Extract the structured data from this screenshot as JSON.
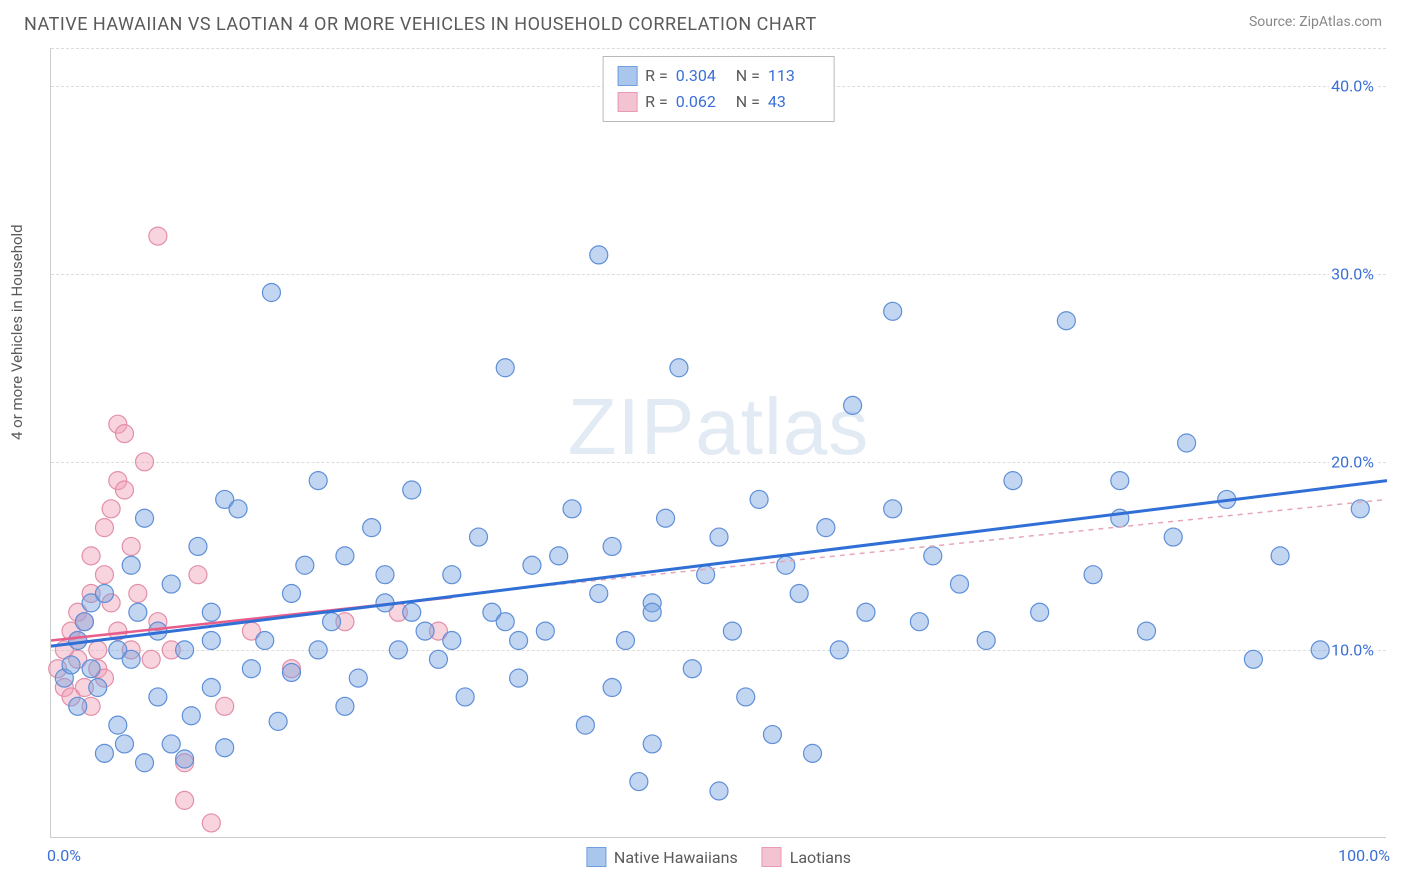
{
  "title": "NATIVE HAWAIIAN VS LAOTIAN 4 OR MORE VEHICLES IN HOUSEHOLD CORRELATION CHART",
  "source": "Source: ZipAtlas.com",
  "ylabel": "4 or more Vehicles in Household",
  "watermark": "ZIPatlas",
  "chart": {
    "type": "scatter",
    "xlim": [
      0,
      100
    ],
    "ylim": [
      0,
      42
    ],
    "yticks": [
      10,
      20,
      30,
      40
    ],
    "ytick_labels": [
      "10.0%",
      "20.0%",
      "30.0%",
      "40.0%"
    ],
    "xtick_low": "0.0%",
    "xtick_high": "100.0%",
    "grid_color": "#dcdcdc",
    "background": "#ffffff",
    "marker_radius": 9,
    "marker_stroke_width": 1.2,
    "series": [
      {
        "name": "Native Hawaiians",
        "fill": "rgba(120,165,225,0.45)",
        "stroke": "#5f8fd8",
        "swatch_fill": "#a9c6ed",
        "swatch_stroke": "#6f9fe0",
        "R": "0.304",
        "N": "113",
        "regression": {
          "x1": 0,
          "y1": 10.2,
          "x2": 100,
          "y2": 19.0,
          "color": "#2f6fd6",
          "width": 3,
          "dash": ""
        },
        "regression_ext": {
          "x1": 30,
          "y1": 12.9,
          "x2": 100,
          "y2": 18.0,
          "color": "#e7a6b6",
          "width": 1.5,
          "dash": "5,5"
        },
        "points": [
          [
            1,
            8.5
          ],
          [
            1.5,
            9.2
          ],
          [
            2,
            10.5
          ],
          [
            2,
            7
          ],
          [
            2.5,
            11.5
          ],
          [
            3,
            9
          ],
          [
            3,
            12.5
          ],
          [
            3.5,
            8
          ],
          [
            4,
            4.5
          ],
          [
            4,
            13
          ],
          [
            5,
            6
          ],
          [
            5,
            10
          ],
          [
            5.5,
            5
          ],
          [
            6,
            14.5
          ],
          [
            6,
            9.5
          ],
          [
            6.5,
            12
          ],
          [
            7,
            4
          ],
          [
            7,
            17
          ],
          [
            8,
            7.5
          ],
          [
            8,
            11
          ],
          [
            9,
            5
          ],
          [
            9,
            13.5
          ],
          [
            10,
            4.2
          ],
          [
            10,
            10
          ],
          [
            10.5,
            6.5
          ],
          [
            11,
            15.5
          ],
          [
            12,
            8
          ],
          [
            12,
            12
          ],
          [
            13,
            4.8
          ],
          [
            13,
            18
          ],
          [
            14,
            17.5
          ],
          [
            15,
            9
          ],
          [
            16,
            10.5
          ],
          [
            16.5,
            29
          ],
          [
            17,
            6.2
          ],
          [
            18,
            8.8
          ],
          [
            18,
            13
          ],
          [
            19,
            14.5
          ],
          [
            20,
            10
          ],
          [
            20,
            19
          ],
          [
            21,
            11.5
          ],
          [
            22,
            7
          ],
          [
            23,
            8.5
          ],
          [
            24,
            16.5
          ],
          [
            25,
            12.5
          ],
          [
            25,
            14
          ],
          [
            26,
            10
          ],
          [
            27,
            12
          ],
          [
            27,
            18.5
          ],
          [
            28,
            11
          ],
          [
            29,
            9.5
          ],
          [
            30,
            14
          ],
          [
            30,
            10.5
          ],
          [
            31,
            7.5
          ],
          [
            32,
            16
          ],
          [
            33,
            12
          ],
          [
            34,
            25
          ],
          [
            35,
            8.5
          ],
          [
            35,
            10.5
          ],
          [
            36,
            14.5
          ],
          [
            37,
            11
          ],
          [
            38,
            15
          ],
          [
            39,
            17.5
          ],
          [
            40,
            6
          ],
          [
            41,
            31
          ],
          [
            41,
            13
          ],
          [
            42,
            8
          ],
          [
            42,
            15.5
          ],
          [
            43,
            10.5
          ],
          [
            44,
            3
          ],
          [
            45,
            5
          ],
          [
            45,
            12.5
          ],
          [
            46,
            17
          ],
          [
            47,
            25
          ],
          [
            48,
            9
          ],
          [
            49,
            14
          ],
          [
            50,
            2.5
          ],
          [
            50,
            16
          ],
          [
            51,
            11
          ],
          [
            52,
            7.5
          ],
          [
            53,
            18
          ],
          [
            54,
            5.5
          ],
          [
            55,
            14.5
          ],
          [
            56,
            13
          ],
          [
            57,
            4.5
          ],
          [
            58,
            16.5
          ],
          [
            59,
            10
          ],
          [
            60,
            23
          ],
          [
            61,
            12
          ],
          [
            63,
            17.5
          ],
          [
            63,
            28
          ],
          [
            65,
            11.5
          ],
          [
            66,
            15
          ],
          [
            68,
            13.5
          ],
          [
            70,
            10.5
          ],
          [
            72,
            19
          ],
          [
            74,
            12
          ],
          [
            76,
            27.5
          ],
          [
            78,
            14
          ],
          [
            80,
            17
          ],
          [
            80,
            19
          ],
          [
            82,
            11
          ],
          [
            84,
            16
          ],
          [
            85,
            21
          ],
          [
            88,
            18
          ],
          [
            90,
            9.5
          ],
          [
            92,
            15
          ],
          [
            95,
            10
          ],
          [
            98,
            17.5
          ],
          [
            45,
            12
          ],
          [
            12,
            10.5
          ],
          [
            22,
            15
          ],
          [
            34,
            11.5
          ]
        ]
      },
      {
        "name": "Laotians",
        "fill": "rgba(240,160,185,0.45)",
        "stroke": "#e38fa8",
        "swatch_fill": "#f4c3d1",
        "swatch_stroke": "#e89cb3",
        "R": "0.062",
        "N": "43",
        "regression": {
          "x1": 0,
          "y1": 10.5,
          "x2": 30,
          "y2": 12.8,
          "color": "#e85d8a",
          "width": 2.5,
          "dash": ""
        },
        "points": [
          [
            0.5,
            9
          ],
          [
            1,
            10
          ],
          [
            1,
            8
          ],
          [
            1.5,
            11
          ],
          [
            1.5,
            7.5
          ],
          [
            2,
            10.5
          ],
          [
            2,
            9.5
          ],
          [
            2,
            12
          ],
          [
            2.5,
            8
          ],
          [
            2.5,
            11.5
          ],
          [
            3,
            7
          ],
          [
            3,
            13
          ],
          [
            3,
            15
          ],
          [
            3.5,
            10
          ],
          [
            3.5,
            9
          ],
          [
            4,
            14
          ],
          [
            4,
            16.5
          ],
          [
            4,
            8.5
          ],
          [
            4.5,
            12.5
          ],
          [
            4.5,
            17.5
          ],
          [
            5,
            11
          ],
          [
            5,
            19
          ],
          [
            5,
            22
          ],
          [
            5.5,
            18.5
          ],
          [
            5.5,
            21.5
          ],
          [
            6,
            10
          ],
          [
            6,
            15.5
          ],
          [
            6.5,
            13
          ],
          [
            7,
            20
          ],
          [
            7.5,
            9.5
          ],
          [
            8,
            11.5
          ],
          [
            8,
            32
          ],
          [
            9,
            10
          ],
          [
            10,
            4
          ],
          [
            10,
            2
          ],
          [
            11,
            14
          ],
          [
            12,
            0.8
          ],
          [
            13,
            7
          ],
          [
            15,
            11
          ],
          [
            18,
            9
          ],
          [
            22,
            11.5
          ],
          [
            26,
            12
          ],
          [
            29,
            11
          ]
        ]
      }
    ]
  },
  "legend": {
    "item1": "Native Hawaiians",
    "item2": "Laotians"
  }
}
